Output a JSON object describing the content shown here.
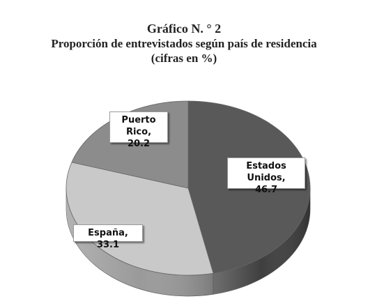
{
  "title_line1": "Gráfico N. ° 2",
  "title_line2": "Proporción de entrevistados según país de residencia",
  "title_line3": "(cifras en %)",
  "chart_data": {
    "type": "pie",
    "slices": [
      {
        "label": "Estados Unidos",
        "value": 46.7,
        "color": "#595959",
        "side_color": "#3f3f3f",
        "data_label_line1": "Estados Unidos,",
        "data_label_line2": "46.7"
      },
      {
        "label": "España",
        "value": 33.1,
        "color": "#c9c9c9",
        "side_color": "#9a9a9a",
        "data_label_line1": "España,  33.1",
        "data_label_line2": ""
      },
      {
        "label": "Puerto Rico",
        "value": 20.2,
        "color": "#8c8c8c",
        "side_color": "#6e6e6e",
        "data_label_line1": "Puerto Rico,",
        "data_label_line2": "20.2"
      }
    ],
    "style": "3d-pie",
    "legend": "none"
  }
}
